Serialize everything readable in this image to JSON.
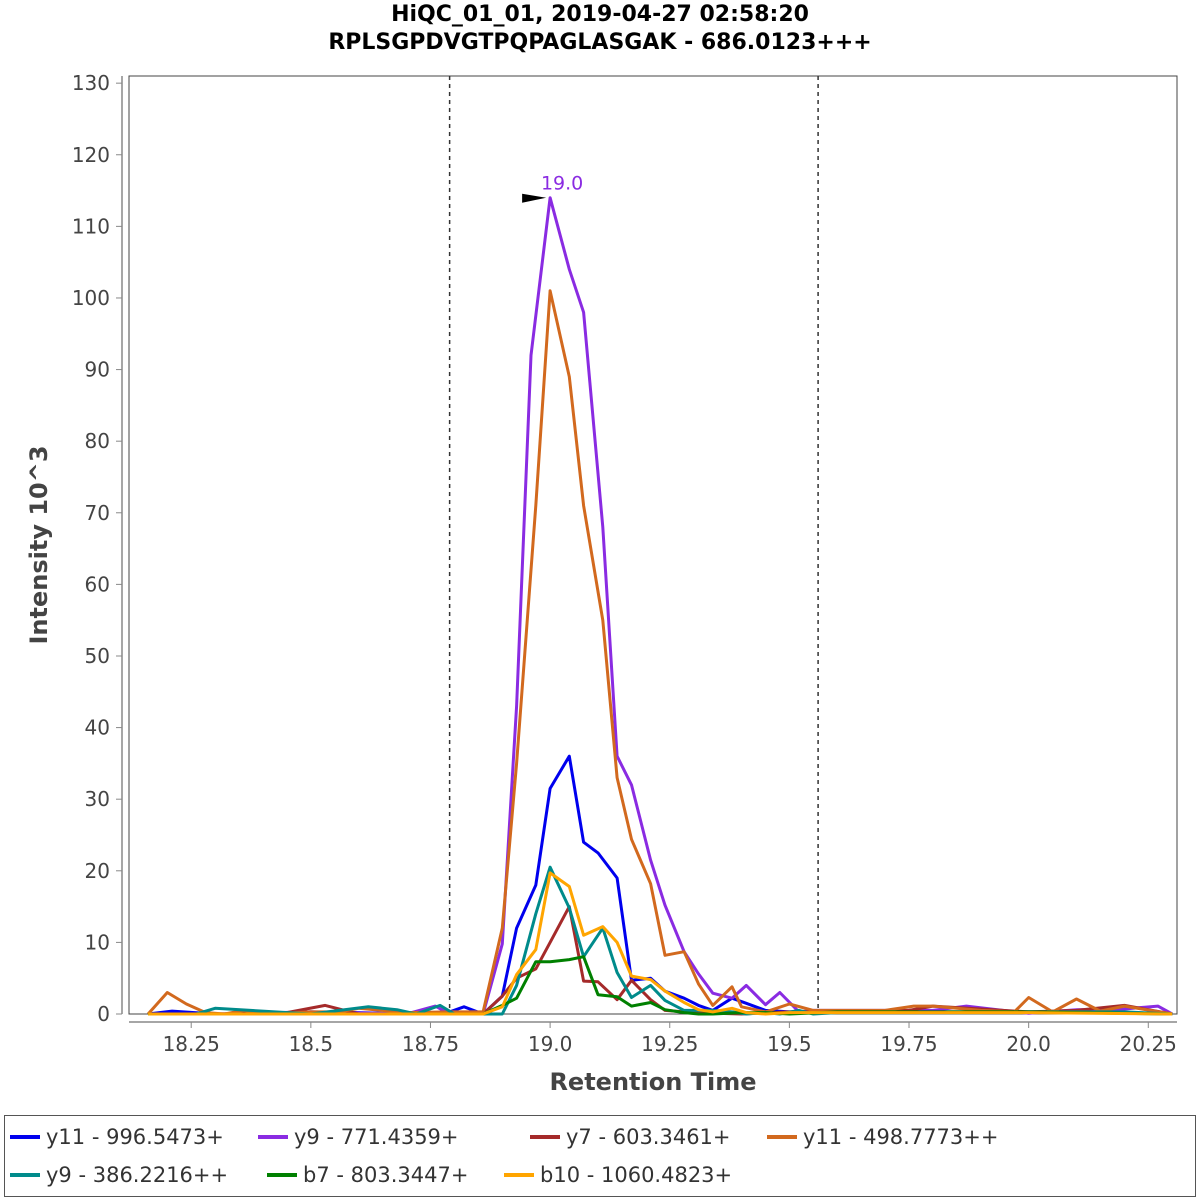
{
  "chart_data": {
    "type": "line",
    "title": "HiQC_01_01, 2019-04-27 02:58:20",
    "subtitle": "RPLSGPDVGTPQPAGLASGAK - 686.0123+++",
    "xlabel": "Retention Time",
    "ylabel": "Intensity 10^3",
    "xlim": [
      18.12,
      20.31
    ],
    "ylim": [
      0,
      131
    ],
    "x_ticks": [
      "18.25",
      "18.5",
      "18.75",
      "19.0",
      "19.25",
      "19.5",
      "19.75",
      "20.0",
      "20.25"
    ],
    "y_ticks": [
      "0",
      "10",
      "20",
      "30",
      "40",
      "50",
      "60",
      "70",
      "80",
      "90",
      "100",
      "110",
      "120",
      "130"
    ],
    "vlines": [
      18.79,
      19.56
    ],
    "peak_annotation": {
      "label": "19.0",
      "x": 19.0,
      "y": 114,
      "color": "#8a2be2"
    },
    "legend_position": "bottom",
    "series": [
      {
        "name": "y11 - 996.5473+",
        "color": "#0000ee",
        "x": [
          18.16,
          18.21,
          18.3,
          18.4,
          18.5,
          18.6,
          18.7,
          18.79,
          18.82,
          18.86,
          18.9,
          18.93,
          18.97,
          19.0,
          19.04,
          19.07,
          19.1,
          19.14,
          19.17,
          19.21,
          19.24,
          19.28,
          19.31,
          19.34,
          19.38,
          19.41,
          19.45,
          19.5,
          19.6,
          19.8,
          20.0,
          20.1,
          20.3
        ],
        "y": [
          0,
          0.4,
          0,
          0,
          0.3,
          0.2,
          0,
          0.3,
          1.0,
          0,
          2.5,
          12,
          18,
          31.5,
          36,
          24,
          22.5,
          19,
          4.7,
          5,
          3.2,
          2.2,
          1.2,
          0.5,
          2.2,
          1.5,
          0.5,
          0.3,
          0.3,
          0.3,
          0.3,
          0.3,
          0
        ]
      },
      {
        "name": "y9 - 771.4359+",
        "color": "#8a2be2",
        "x": [
          18.16,
          18.3,
          18.5,
          18.7,
          18.76,
          18.79,
          18.83,
          18.86,
          18.9,
          18.93,
          18.96,
          19.0,
          19.04,
          19.07,
          19.11,
          19.14,
          19.17,
          19.21,
          19.24,
          19.28,
          19.31,
          19.34,
          19.38,
          19.41,
          19.45,
          19.48,
          19.52,
          19.55,
          19.6,
          19.8,
          19.87,
          20.0,
          20.1,
          20.2,
          20.27,
          20.3
        ],
        "y": [
          0,
          0,
          0.3,
          0,
          1.1,
          0,
          0,
          0,
          9.8,
          43,
          92,
          114,
          104,
          98,
          68,
          36,
          32,
          21.5,
          15.2,
          8.7,
          5.6,
          2.9,
          2.2,
          4,
          1.3,
          3,
          0.3,
          0.5,
          0.5,
          0.5,
          1.1,
          0.1,
          0.6,
          0.7,
          1.1,
          0
        ]
      },
      {
        "name": "y7 - 603.3461+",
        "color": "#a52a2a",
        "x": [
          18.16,
          18.3,
          18.45,
          18.53,
          18.6,
          18.75,
          18.86,
          18.9,
          18.93,
          18.97,
          19.0,
          19.04,
          19.07,
          19.1,
          19.14,
          19.17,
          19.21,
          19.24,
          19.3,
          19.4,
          19.5,
          19.75,
          19.8,
          20.0,
          20.1,
          20.2,
          20.3
        ],
        "y": [
          0,
          0,
          0.2,
          1.2,
          0,
          0,
          0,
          2.5,
          5,
          6.3,
          10,
          15,
          4.6,
          4.5,
          2,
          4.7,
          2,
          0.5,
          0.2,
          0,
          0.3,
          0.5,
          1.1,
          0.3,
          0.5,
          1.2,
          0
        ]
      },
      {
        "name": "y11 - 498.7773++",
        "color": "#d2691e",
        "x": [
          18.16,
          18.2,
          18.24,
          18.28,
          18.32,
          18.36,
          18.4,
          18.5,
          18.56,
          18.6,
          18.7,
          18.79,
          18.83,
          18.86,
          18.9,
          18.93,
          18.97,
          19.0,
          19.04,
          19.07,
          19.11,
          19.14,
          19.17,
          19.21,
          19.24,
          19.28,
          19.31,
          19.34,
          19.38,
          19.4,
          19.45,
          19.5,
          19.55,
          19.6,
          19.7,
          19.76,
          19.8,
          19.9,
          19.97,
          20.0,
          20.05,
          20.1,
          20.15,
          20.2,
          20.3
        ],
        "y": [
          0,
          3,
          1.4,
          0.2,
          0,
          0.5,
          0,
          0.3,
          0.3,
          0.8,
          0.2,
          0.3,
          0.3,
          0.3,
          12,
          35,
          71,
          101,
          89,
          71,
          55,
          33,
          24.4,
          18.2,
          8.2,
          8.7,
          4.2,
          1.2,
          3.8,
          1,
          0.3,
          1.4,
          0.5,
          0.5,
          0.5,
          1.1,
          1.1,
          0.5,
          0.3,
          2.3,
          0.3,
          2.1,
          0.4,
          1.1,
          0
        ]
      },
      {
        "name": "y9 - 386.2216++",
        "color": "#008b8b",
        "x": [
          18.16,
          18.26,
          18.3,
          18.5,
          18.62,
          18.68,
          18.72,
          18.77,
          18.8,
          18.86,
          18.9,
          18.93,
          18.97,
          19.0,
          19.04,
          19.07,
          19.11,
          19.14,
          19.17,
          19.21,
          19.24,
          19.28,
          19.31,
          19.34,
          19.38,
          19.41,
          19.45,
          19.48,
          19.52,
          19.55,
          19.6,
          19.8,
          19.9,
          20.0,
          20.1,
          20.2,
          20.3
        ],
        "y": [
          0,
          0,
          0.8,
          0,
          1,
          0.6,
          0,
          1.2,
          0,
          0,
          0,
          4,
          14,
          20.5,
          14.8,
          8,
          12,
          5.8,
          2.3,
          4,
          1.9,
          0.5,
          0.5,
          0.5,
          0.3,
          0,
          0.2,
          0,
          0.5,
          0,
          0.2,
          0.2,
          0.2,
          0.3,
          0.3,
          0.3,
          0
        ]
      },
      {
        "name": "b7 - 803.3447+",
        "color": "#008000",
        "x": [
          18.16,
          18.4,
          18.7,
          18.86,
          18.9,
          18.93,
          18.97,
          19.0,
          19.04,
          19.07,
          19.1,
          19.14,
          19.17,
          19.21,
          19.24,
          19.28,
          19.31,
          19.34,
          19.4,
          19.45,
          19.5,
          19.6,
          19.8,
          20.0,
          20.3
        ],
        "y": [
          0,
          0,
          0,
          0,
          1.2,
          2.2,
          7.3,
          7.3,
          7.6,
          8,
          2.7,
          2.4,
          1.1,
          1.6,
          0.6,
          0.2,
          0,
          0,
          0.2,
          0.2,
          0,
          0.3,
          0.3,
          0.3,
          0
        ]
      },
      {
        "name": "b10 - 1060.4823+",
        "color": "#ffa500",
        "x": [
          18.16,
          18.5,
          18.7,
          18.86,
          18.9,
          18.93,
          18.97,
          19.0,
          19.04,
          19.07,
          19.11,
          19.14,
          19.17,
          19.21,
          19.24,
          19.28,
          19.31,
          19.34,
          19.38,
          19.41,
          19.45,
          19.5,
          19.6,
          19.8,
          20.0,
          20.3
        ],
        "y": [
          0,
          0,
          0,
          0,
          1,
          5.5,
          9,
          19.7,
          17.8,
          11,
          12.2,
          10,
          5.3,
          4.8,
          3.2,
          1.6,
          0.6,
          0.3,
          0.8,
          0.2,
          0,
          0.2,
          0.2,
          0.2,
          0.2,
          0
        ]
      }
    ]
  }
}
